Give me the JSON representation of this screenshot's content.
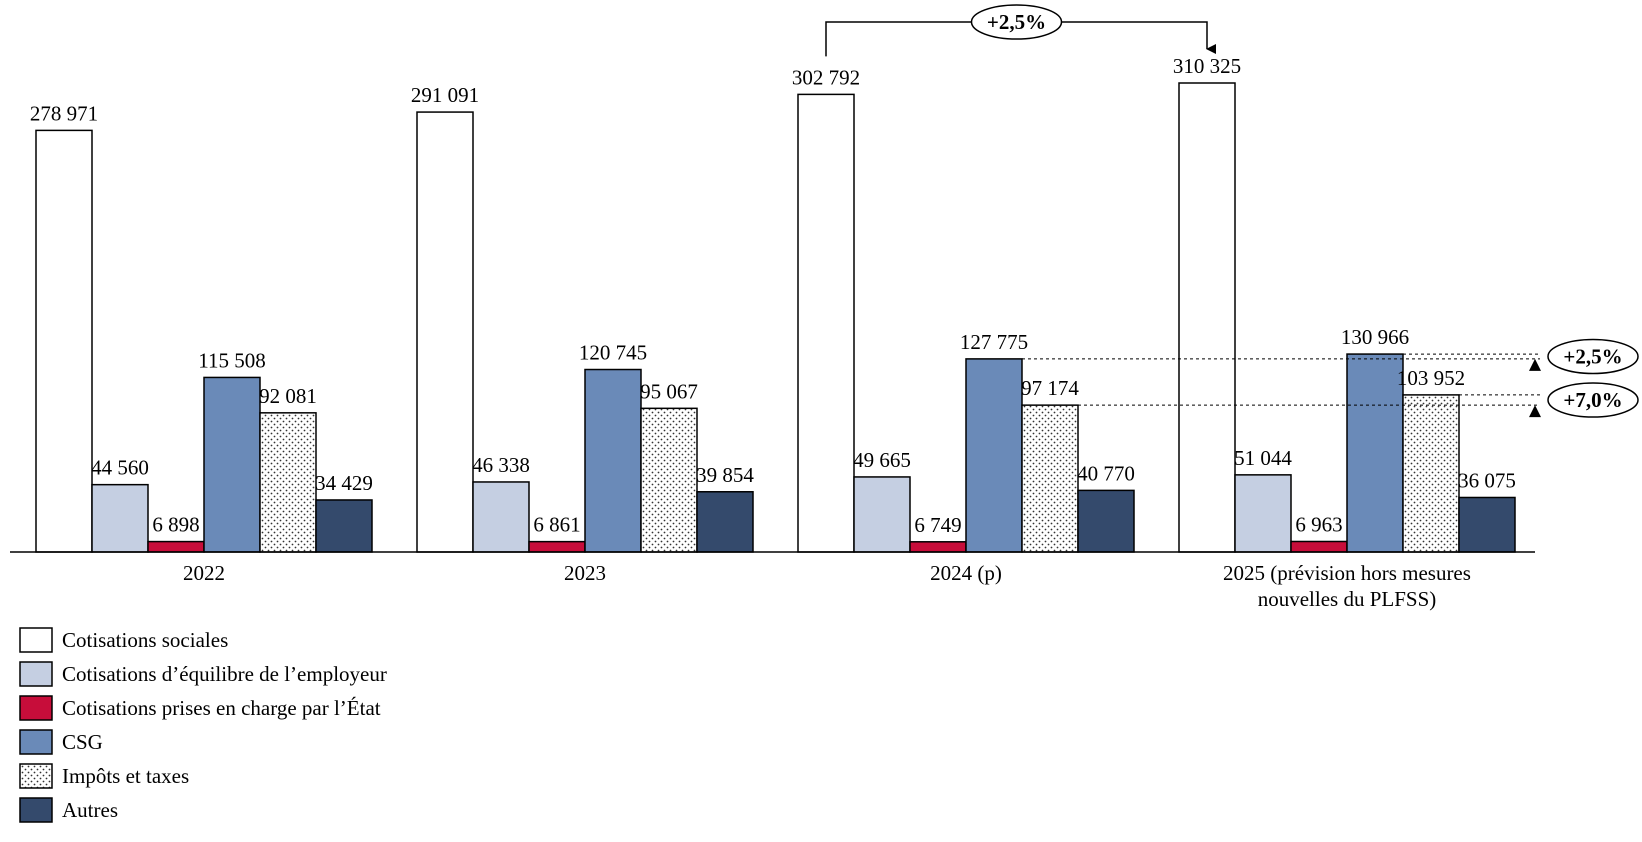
{
  "chart_data": {
    "type": "bar",
    "categories": [
      "2022",
      "2023",
      "2024 (p)",
      "2025 (prévision hors mesures nouvelles du PLFSS)"
    ],
    "series": [
      {
        "name": "Cotisations sociales",
        "color": "#ffffff",
        "values": [
          278971,
          291091,
          302792,
          310325
        ],
        "value_labels": [
          "278 971",
          "291 091",
          "302 792",
          "310 325"
        ]
      },
      {
        "name": "Cotisations d’équilibre de l’employeur",
        "color": "#c5cfe2",
        "values": [
          44560,
          46338,
          49665,
          51044
        ],
        "value_labels": [
          "44 560",
          "46 338",
          "49 665",
          "51 044"
        ]
      },
      {
        "name": "Cotisations prises en charge par l’État",
        "color": "#c70d3a",
        "values": [
          6898,
          6861,
          6749,
          6963
        ],
        "value_labels": [
          "6 898",
          "6 861",
          "6 749",
          "6 963"
        ]
      },
      {
        "name": "CSG",
        "color": "#6a8ab8",
        "values": [
          115508,
          120745,
          127775,
          130966
        ],
        "value_labels": [
          "115 508",
          "120 745",
          "127 775",
          "130 966"
        ]
      },
      {
        "name": "Impôts et taxes",
        "color": "#ffffff",
        "pattern": "dots",
        "values": [
          92081,
          95067,
          97174,
          103952
        ],
        "value_labels": [
          "92 081",
          "95 067",
          "97 174",
          "103 952"
        ]
      },
      {
        "name": "Autres",
        "color": "#344a6c",
        "values": [
          34429,
          39854,
          40770,
          36075
        ],
        "value_labels": [
          "34 429",
          "39 854",
          "40 770",
          "36 075"
        ]
      }
    ],
    "annotations": [
      "+2,5%",
      "+2,5%",
      "+7,0%"
    ]
  }
}
